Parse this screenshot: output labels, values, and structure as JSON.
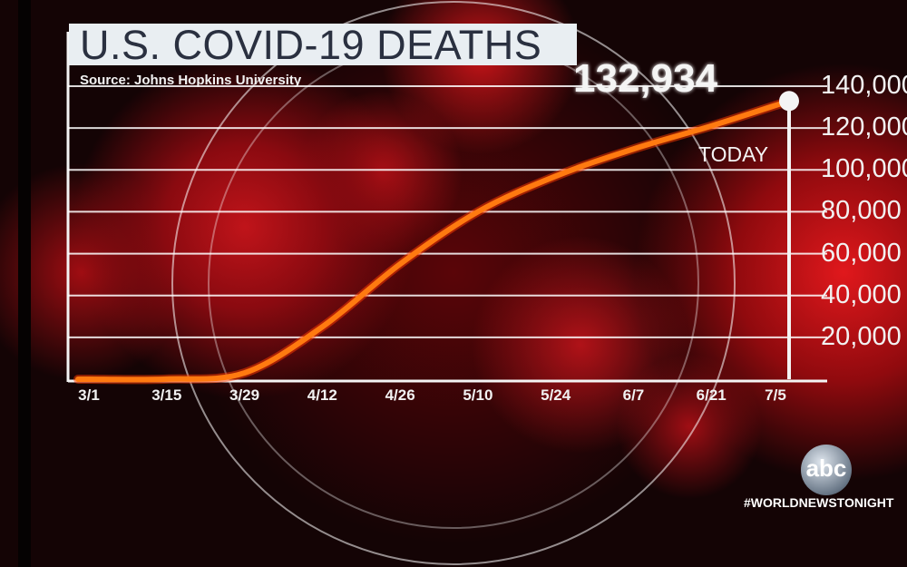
{
  "chart_data": {
    "type": "line",
    "title": "U.S. COVID-19 DEATHS",
    "subtitle": "Source: Johns Hopkins University",
    "categories": [
      "3/1",
      "3/15",
      "3/29",
      "4/12",
      "4/26",
      "5/10",
      "5/24",
      "6/7",
      "6/21",
      "7/5"
    ],
    "values": [
      0,
      50,
      3000,
      25000,
      55000,
      80000,
      97000,
      110000,
      121000,
      132934
    ],
    "y_ticks": [
      "20,000",
      "40,000",
      "60,000",
      "80,000",
      "100,000",
      "120,000",
      "140,000"
    ],
    "ylim": [
      0,
      140000
    ],
    "grid": true,
    "line_color": "#ff7a10",
    "highlight": {
      "label": "TODAY",
      "date": "7/5",
      "value_label": "132,934"
    }
  },
  "branding": {
    "logo": "abc",
    "hashtag": "#WORLDNEWSTONIGHT"
  }
}
